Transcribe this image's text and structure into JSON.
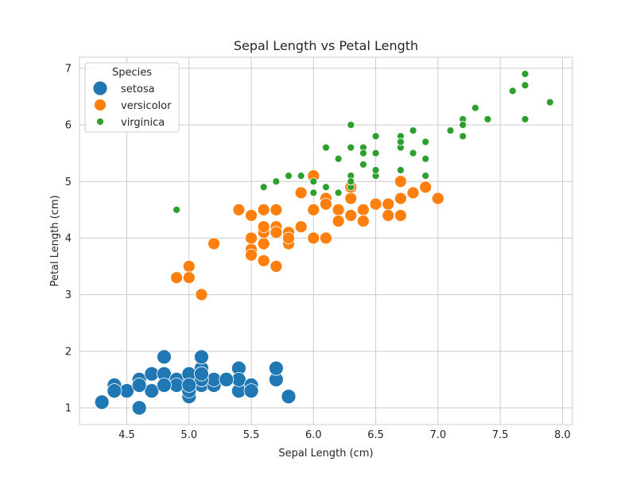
{
  "chart_data": {
    "type": "scatter",
    "title": "Sepal Length vs Petal Length",
    "xlabel": "Sepal Length (cm)",
    "ylabel": "Petal Length (cm)",
    "xlim": [
      4.12,
      8.08
    ],
    "ylim": [
      0.705,
      7.195
    ],
    "xticks": [
      4.5,
      5.0,
      5.5,
      6.0,
      6.5,
      7.0,
      7.5,
      8.0
    ],
    "xtick_labels": [
      "4.5",
      "5.0",
      "5.5",
      "6.0",
      "6.5",
      "7.0",
      "7.5",
      "8.0"
    ],
    "yticks": [
      1,
      2,
      3,
      4,
      5,
      6,
      7
    ],
    "ytick_labels": [
      "1",
      "2",
      "3",
      "4",
      "5",
      "6",
      "7"
    ],
    "grid": true,
    "legend": {
      "title": "Species",
      "placement": "top-left"
    },
    "series": [
      {
        "name": "setosa",
        "color": "#1f77b4",
        "marker_size": "large",
        "points": [
          [
            5.1,
            1.4
          ],
          [
            4.9,
            1.4
          ],
          [
            4.7,
            1.3
          ],
          [
            4.6,
            1.5
          ],
          [
            5.0,
            1.4
          ],
          [
            5.4,
            1.7
          ],
          [
            4.6,
            1.4
          ],
          [
            5.0,
            1.5
          ],
          [
            4.4,
            1.4
          ],
          [
            4.9,
            1.5
          ],
          [
            5.4,
            1.5
          ],
          [
            4.8,
            1.6
          ],
          [
            4.8,
            1.4
          ],
          [
            4.3,
            1.1
          ],
          [
            5.8,
            1.2
          ],
          [
            5.7,
            1.5
          ],
          [
            5.4,
            1.3
          ],
          [
            5.1,
            1.4
          ],
          [
            5.7,
            1.7
          ],
          [
            5.1,
            1.5
          ],
          [
            5.4,
            1.7
          ],
          [
            5.1,
            1.5
          ],
          [
            4.6,
            1.0
          ],
          [
            5.1,
            1.7
          ],
          [
            4.8,
            1.9
          ],
          [
            5.0,
            1.6
          ],
          [
            5.0,
            1.6
          ],
          [
            5.2,
            1.5
          ],
          [
            5.2,
            1.4
          ],
          [
            4.7,
            1.6
          ],
          [
            4.8,
            1.6
          ],
          [
            5.4,
            1.5
          ],
          [
            5.2,
            1.5
          ],
          [
            5.5,
            1.4
          ],
          [
            4.9,
            1.5
          ],
          [
            5.0,
            1.2
          ],
          [
            5.5,
            1.3
          ],
          [
            4.9,
            1.4
          ],
          [
            4.4,
            1.3
          ],
          [
            5.1,
            1.5
          ],
          [
            5.0,
            1.3
          ],
          [
            4.5,
            1.3
          ],
          [
            4.4,
            1.3
          ],
          [
            5.0,
            1.6
          ],
          [
            5.1,
            1.9
          ],
          [
            4.8,
            1.4
          ],
          [
            5.1,
            1.6
          ],
          [
            4.6,
            1.4
          ],
          [
            5.3,
            1.5
          ],
          [
            5.0,
            1.4
          ]
        ]
      },
      {
        "name": "versicolor",
        "color": "#ff7f0e",
        "marker_size": "medium",
        "points": [
          [
            7.0,
            4.7
          ],
          [
            6.4,
            4.5
          ],
          [
            6.9,
            4.9
          ],
          [
            5.5,
            4.0
          ],
          [
            6.5,
            4.6
          ],
          [
            5.7,
            4.5
          ],
          [
            6.3,
            4.7
          ],
          [
            4.9,
            3.3
          ],
          [
            6.6,
            4.6
          ],
          [
            5.2,
            3.9
          ],
          [
            5.0,
            3.5
          ],
          [
            5.9,
            4.2
          ],
          [
            6.0,
            4.0
          ],
          [
            6.1,
            4.7
          ],
          [
            5.6,
            3.6
          ],
          [
            6.7,
            4.4
          ],
          [
            5.6,
            4.5
          ],
          [
            5.8,
            4.1
          ],
          [
            6.2,
            4.5
          ],
          [
            5.6,
            3.9
          ],
          [
            5.9,
            4.8
          ],
          [
            6.1,
            4.0
          ],
          [
            6.3,
            4.9
          ],
          [
            6.1,
            4.7
          ],
          [
            6.4,
            4.3
          ],
          [
            6.6,
            4.4
          ],
          [
            6.8,
            4.8
          ],
          [
            6.7,
            5.0
          ],
          [
            6.0,
            4.5
          ],
          [
            5.7,
            3.5
          ],
          [
            5.5,
            3.8
          ],
          [
            5.5,
            3.7
          ],
          [
            5.8,
            3.9
          ],
          [
            6.0,
            5.1
          ],
          [
            5.4,
            4.5
          ],
          [
            6.0,
            4.5
          ],
          [
            6.7,
            4.7
          ],
          [
            6.3,
            4.4
          ],
          [
            5.6,
            4.1
          ],
          [
            5.5,
            4.0
          ],
          [
            5.5,
            4.4
          ],
          [
            6.1,
            4.6
          ],
          [
            5.8,
            4.0
          ],
          [
            5.0,
            3.3
          ],
          [
            5.6,
            4.2
          ],
          [
            5.7,
            4.2
          ],
          [
            5.7,
            4.2
          ],
          [
            6.2,
            4.3
          ],
          [
            5.1,
            3.0
          ],
          [
            5.7,
            4.1
          ]
        ]
      },
      {
        "name": "virginica",
        "color": "#2ca02c",
        "marker_size": "small",
        "points": [
          [
            6.3,
            6.0
          ],
          [
            5.8,
            5.1
          ],
          [
            7.1,
            5.9
          ],
          [
            6.3,
            5.6
          ],
          [
            6.5,
            5.8
          ],
          [
            7.6,
            6.6
          ],
          [
            4.9,
            4.5
          ],
          [
            7.3,
            6.3
          ],
          [
            6.7,
            5.8
          ],
          [
            7.2,
            6.1
          ],
          [
            6.5,
            5.1
          ],
          [
            6.4,
            5.3
          ],
          [
            6.8,
            5.5
          ],
          [
            5.7,
            5.0
          ],
          [
            5.8,
            5.1
          ],
          [
            6.4,
            5.3
          ],
          [
            6.5,
            5.5
          ],
          [
            7.7,
            6.7
          ],
          [
            7.7,
            6.9
          ],
          [
            6.0,
            5.0
          ],
          [
            6.9,
            5.7
          ],
          [
            5.6,
            4.9
          ],
          [
            7.7,
            6.7
          ],
          [
            6.3,
            4.9
          ],
          [
            6.7,
            5.7
          ],
          [
            7.2,
            6.0
          ],
          [
            6.2,
            4.8
          ],
          [
            6.1,
            4.9
          ],
          [
            6.4,
            5.6
          ],
          [
            7.2,
            5.8
          ],
          [
            7.4,
            6.1
          ],
          [
            7.9,
            6.4
          ],
          [
            6.4,
            5.6
          ],
          [
            6.3,
            5.1
          ],
          [
            6.1,
            5.6
          ],
          [
            7.7,
            6.1
          ],
          [
            6.3,
            5.6
          ],
          [
            6.4,
            5.5
          ],
          [
            6.0,
            4.8
          ],
          [
            6.9,
            5.4
          ],
          [
            6.7,
            5.6
          ],
          [
            6.9,
            5.1
          ],
          [
            5.8,
            5.1
          ],
          [
            6.8,
            5.9
          ],
          [
            6.7,
            5.7
          ],
          [
            6.7,
            5.2
          ],
          [
            6.3,
            5.0
          ],
          [
            6.5,
            5.2
          ],
          [
            6.2,
            5.4
          ],
          [
            5.9,
            5.1
          ]
        ]
      }
    ]
  }
}
